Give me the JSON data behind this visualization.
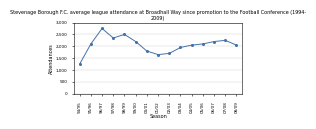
{
  "title": "Stevenage Borough F.C. average league attendance at Broadhall Way since promotion to the Football Conference (1994-\n2009)",
  "xlabel": "Season",
  "ylabel": "Attendances",
  "seasons": [
    "94/95",
    "95/96",
    "96/97",
    "97/98",
    "98/99",
    "99/00",
    "00/01",
    "01/02",
    "02/03",
    "03/04",
    "04/05",
    "05/06",
    "06/07",
    "07/08",
    "08/09"
  ],
  "values": [
    1250,
    2100,
    2750,
    2350,
    2500,
    2200,
    1800,
    1650,
    1700,
    1950,
    2050,
    2100,
    2200,
    2250,
    2050
  ],
  "line_color": "#4472A8",
  "marker": "o",
  "marker_size": 1.2,
  "line_width": 0.7,
  "ylim": [
    0,
    3000
  ],
  "yticks": [
    0,
    500,
    1000,
    1500,
    2000,
    2500,
    3000
  ],
  "background_color": "#ffffff",
  "title_fontsize": 3.5,
  "axis_label_fontsize": 3.5,
  "tick_fontsize": 3.0
}
